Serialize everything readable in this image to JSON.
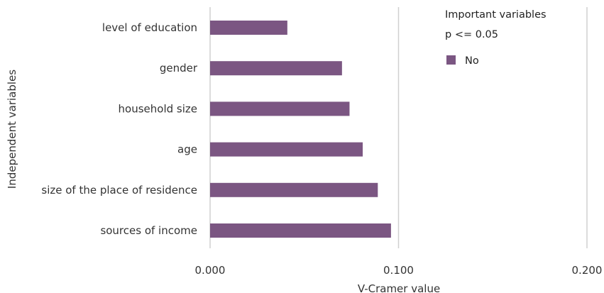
{
  "chart_data": {
    "type": "bar",
    "orientation": "horizontal",
    "categories": [
      "level of education",
      "gender",
      "household size",
      "age",
      "size of the place of residence",
      "sources of income"
    ],
    "series": [
      {
        "name": "No",
        "values": [
          0.041,
          0.07,
          0.074,
          0.081,
          0.089,
          0.096
        ],
        "color": "#7b5682"
      }
    ],
    "xlabel": "V-Cramer value",
    "ylabel": "Independent variables",
    "xlim": [
      0,
      0.2
    ],
    "x_ticks": [
      0.0,
      0.1,
      0.2
    ],
    "x_tick_labels": [
      "0.000",
      "0.100",
      "0.200"
    ],
    "grid": "vertical",
    "gridline_color": "#d0d0d0",
    "legend": {
      "title_lines": [
        "Important variables",
        "p <= 0.05"
      ],
      "placement": "top-right"
    }
  }
}
